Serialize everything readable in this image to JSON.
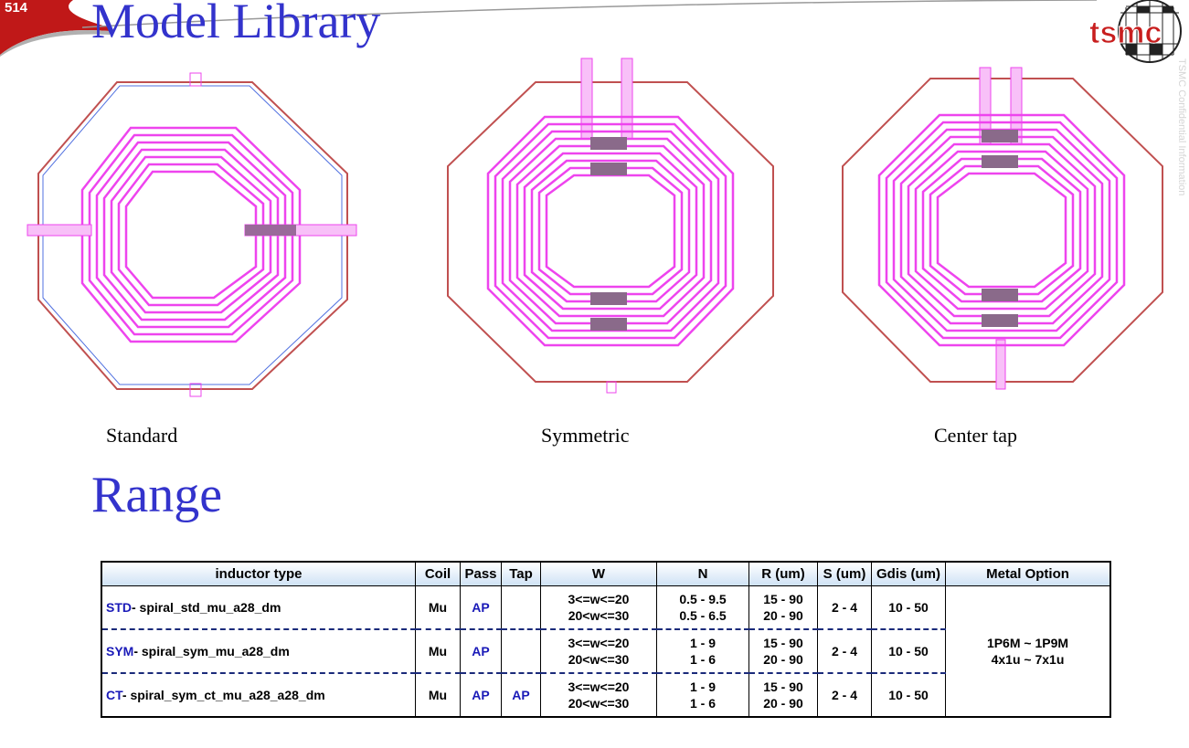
{
  "page_number": "514",
  "title": "Model Library",
  "logo_text": "tsmc",
  "side_text": "TSMC Confidential Information",
  "diagram_captions": [
    "Standard",
    "Symmetric",
    "Center tap"
  ],
  "range_title": "Range",
  "colors": {
    "title_blue": "#3333cc",
    "inductor_magenta": "#ee44ee",
    "logo_red": "#c81e1e"
  },
  "table": {
    "headers": [
      "inductor type",
      "Coil",
      "Pass",
      "Tap",
      "W",
      "N",
      "R (um)",
      "S (um)",
      "Gdis (um)",
      "Metal Option"
    ],
    "rows": [
      {
        "prefix": "STD",
        "name": "- spiral_std_mu_a28_dm",
        "coil": "Mu",
        "pass": "AP",
        "tap": "",
        "w": [
          "3<=w<=20",
          "20<w<=30"
        ],
        "n": [
          "0.5 - 9.5",
          "0.5 - 6.5"
        ],
        "r": [
          "15 - 90",
          "20 - 90"
        ],
        "s": "2 - 4",
        "gdis": "10 - 50"
      },
      {
        "prefix": "SYM",
        "name": "- spiral_sym_mu_a28_dm",
        "coil": "Mu",
        "pass": "AP",
        "tap": "",
        "w": [
          "3<=w<=20",
          "20<w<=30"
        ],
        "n": [
          "1 - 9",
          "1 - 6"
        ],
        "r": [
          "15 - 90",
          "20 - 90"
        ],
        "s": "2 - 4",
        "gdis": "10 - 50"
      },
      {
        "prefix": "CT",
        "name": "- spiral_sym_ct_mu_a28_a28_dm",
        "coil": "Mu",
        "pass": "AP",
        "tap": "AP",
        "w": [
          "3<=w<=20",
          "20<w<=30"
        ],
        "n": [
          "1 - 9",
          "1 - 6"
        ],
        "r": [
          "15 - 90",
          "20 - 90"
        ],
        "s": "2 - 4",
        "gdis": "10 - 50"
      }
    ],
    "metal_option": [
      "1P6M ~ 1P9M",
      "4x1u ~ 7x1u"
    ]
  }
}
